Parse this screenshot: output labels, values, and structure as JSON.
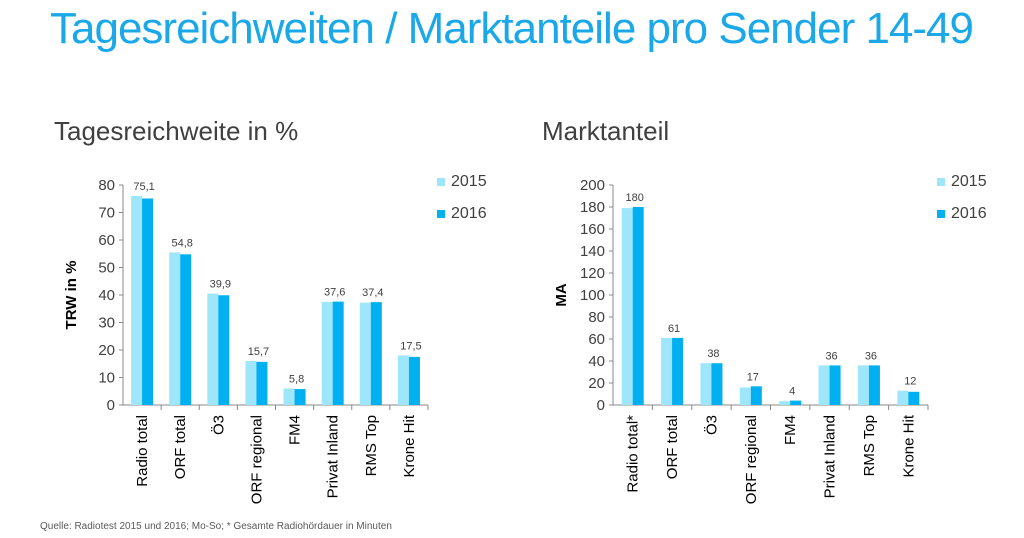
{
  "title": "Tagesreichweiten / Marktanteile pro Sender 14-49",
  "footnote": "Quelle: Radiotest 2015 und 2016; Mo-So; * Gesamte Radiohördauer in Minuten",
  "colors": {
    "s2015": "#9ee6fb",
    "s2016": "#00b0f0",
    "axis": "#888888",
    "text": "#404040"
  },
  "chart_data": [
    {
      "type": "bar",
      "title": "Tagesreichweite in %",
      "ylabel": "TRW in %",
      "xlabel": "",
      "ylim": [
        0,
        80
      ],
      "yticks": [
        0,
        10,
        20,
        30,
        40,
        50,
        60,
        70,
        80
      ],
      "categories": [
        "Radio total",
        "ORF total",
        "Ö3",
        "ORF regional",
        "FM4",
        "Privat Inland",
        "RMS Top",
        "Krone Hit"
      ],
      "series": [
        {
          "name": "2015",
          "values": [
            76,
            55.5,
            40.5,
            16,
            6,
            37.5,
            37.2,
            18
          ]
        },
        {
          "name": "2016",
          "values": [
            75.1,
            54.8,
            39.9,
            15.7,
            5.8,
            37.6,
            37.4,
            17.5
          ]
        }
      ],
      "data_labels": [
        "75,1",
        "54,8",
        "39,9",
        "15,7",
        "5,8",
        "37,6",
        "37,4",
        "17,5"
      ],
      "legend": "top-right"
    },
    {
      "type": "bar",
      "title": "Marktanteil",
      "ylabel": "MA",
      "xlabel": "",
      "ylim": [
        0,
        200
      ],
      "yticks": [
        0,
        20,
        40,
        60,
        80,
        100,
        120,
        140,
        160,
        180,
        200
      ],
      "categories": [
        "Radio total*",
        "ORF total",
        "Ö3",
        "ORF regional",
        "FM4",
        "Privat Inland",
        "RMS Top",
        "Krone Hit"
      ],
      "series": [
        {
          "name": "2015",
          "values": [
            179,
            61,
            38,
            16,
            3.5,
            36,
            36,
            13
          ]
        },
        {
          "name": "2016",
          "values": [
            180,
            61,
            38,
            17,
            4,
            36,
            36,
            12
          ]
        }
      ],
      "data_labels": [
        "180",
        "61",
        "38",
        "17",
        "4",
        "36",
        "36",
        "12"
      ],
      "legend": "top-right"
    }
  ]
}
